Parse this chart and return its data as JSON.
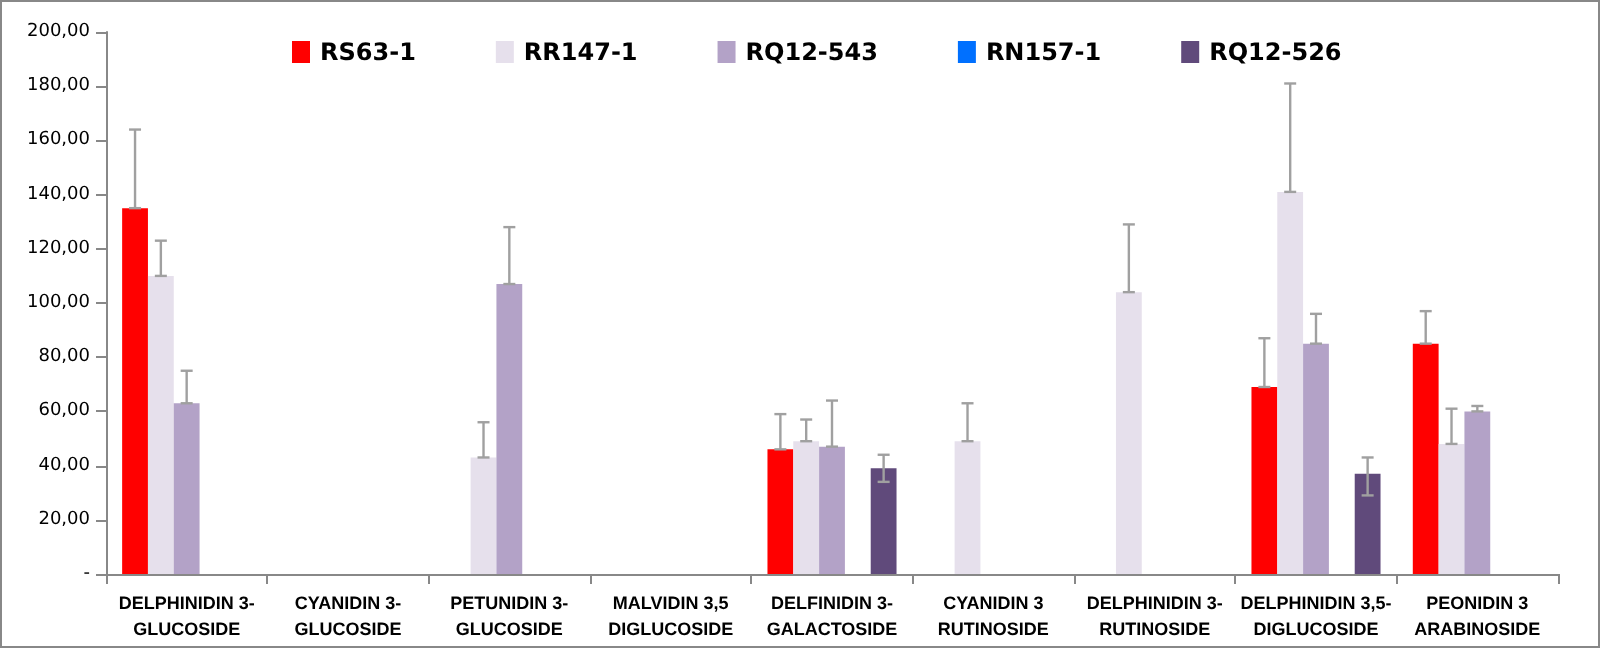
{
  "chart_data": {
    "type": "bar",
    "categories": [
      "DELPHINIDIN 3-\nGLUCOSIDE",
      "CYANIDIN 3-\nGLUCOSIDE",
      "PETUNIDIN 3-\nGLUCOSIDE",
      "MALVIDIN 3,5\nDIGLUCOSIDE",
      "DELFINIDIN 3-\nGALACTOSIDE",
      "CYANIDIN 3\nRUTINOSIDE",
      "DELPHINIDIN 3-\nRUTINOSIDE",
      "DELPHINIDIN 3,5-\nDIGLUCOSIDE",
      "PEONIDIN 3\nARABINOSIDE"
    ],
    "series": [
      {
        "name": "RS63-1",
        "color": "#ff0000",
        "values": [
          135,
          null,
          null,
          null,
          46,
          null,
          null,
          69,
          85
        ],
        "errors": [
          [
            135,
            164
          ],
          null,
          null,
          null,
          [
            46,
            59
          ],
          null,
          null,
          [
            69,
            87
          ],
          [
            85,
            97
          ]
        ]
      },
      {
        "name": "RR147-1",
        "color": "#e6e0ec",
        "values": [
          110,
          null,
          43,
          null,
          49,
          49,
          104,
          141,
          48
        ],
        "errors": [
          [
            110,
            123
          ],
          null,
          [
            43,
            56
          ],
          null,
          [
            49,
            57
          ],
          [
            49,
            63
          ],
          [
            104,
            129
          ],
          [
            141,
            181
          ],
          [
            48,
            61
          ]
        ]
      },
      {
        "name": "RQ12-543",
        "color": "#b3a2c7",
        "values": [
          63,
          null,
          107,
          null,
          47,
          null,
          null,
          85,
          60
        ],
        "errors": [
          [
            63,
            75
          ],
          null,
          [
            107,
            128
          ],
          null,
          [
            47,
            64
          ],
          null,
          null,
          [
            85,
            96
          ],
          [
            60,
            62
          ]
        ]
      },
      {
        "name": "RN157-1",
        "color": "#0070ff",
        "values": [
          null,
          null,
          null,
          null,
          null,
          null,
          null,
          null,
          null
        ]
      },
      {
        "name": "RQ12-526",
        "color": "#604a7b",
        "values": [
          null,
          null,
          null,
          null,
          39,
          null,
          null,
          37,
          null
        ],
        "errors": [
          null,
          null,
          null,
          null,
          [
            34,
            44
          ],
          null,
          null,
          [
            29,
            43
          ],
          null
        ]
      }
    ],
    "ylim": [
      0,
      200
    ],
    "yticks": [
      {
        "value": 0,
        "label": "-"
      },
      {
        "value": 20,
        "label": "20,00"
      },
      {
        "value": 40,
        "label": "40,00"
      },
      {
        "value": 60,
        "label": "60,00"
      },
      {
        "value": 80,
        "label": "80,00"
      },
      {
        "value": 100,
        "label": "100,00"
      },
      {
        "value": 120,
        "label": "120,00"
      },
      {
        "value": 140,
        "label": "140,00"
      },
      {
        "value": 160,
        "label": "160,00"
      },
      {
        "value": 180,
        "label": "180,00"
      },
      {
        "value": 200,
        "label": "200,00"
      }
    ],
    "grid": false,
    "legend": "top"
  }
}
